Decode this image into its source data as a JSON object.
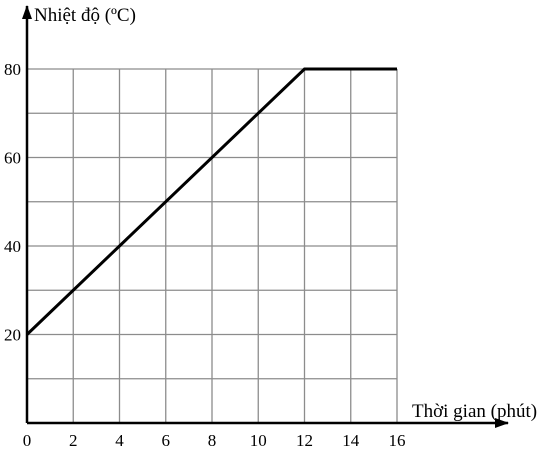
{
  "chart_data": {
    "type": "line",
    "title": "",
    "xlabel": "Thời gian (phút)",
    "ylabel": "Nhiệt độ (ºC)",
    "xlim": [
      0,
      16
    ],
    "ylim": [
      0,
      80
    ],
    "x_ticks": [
      0,
      2,
      4,
      6,
      8,
      10,
      12,
      14,
      16
    ],
    "y_ticks": [
      20,
      40,
      60,
      80
    ],
    "grid": true,
    "grid_x_step": 2,
    "grid_y_step": 10,
    "series": [
      {
        "x": [
          0,
          12,
          16
        ],
        "y": [
          20,
          80,
          80
        ]
      }
    ],
    "line_color": "#000000",
    "grid_color": "#8c8c8c"
  }
}
